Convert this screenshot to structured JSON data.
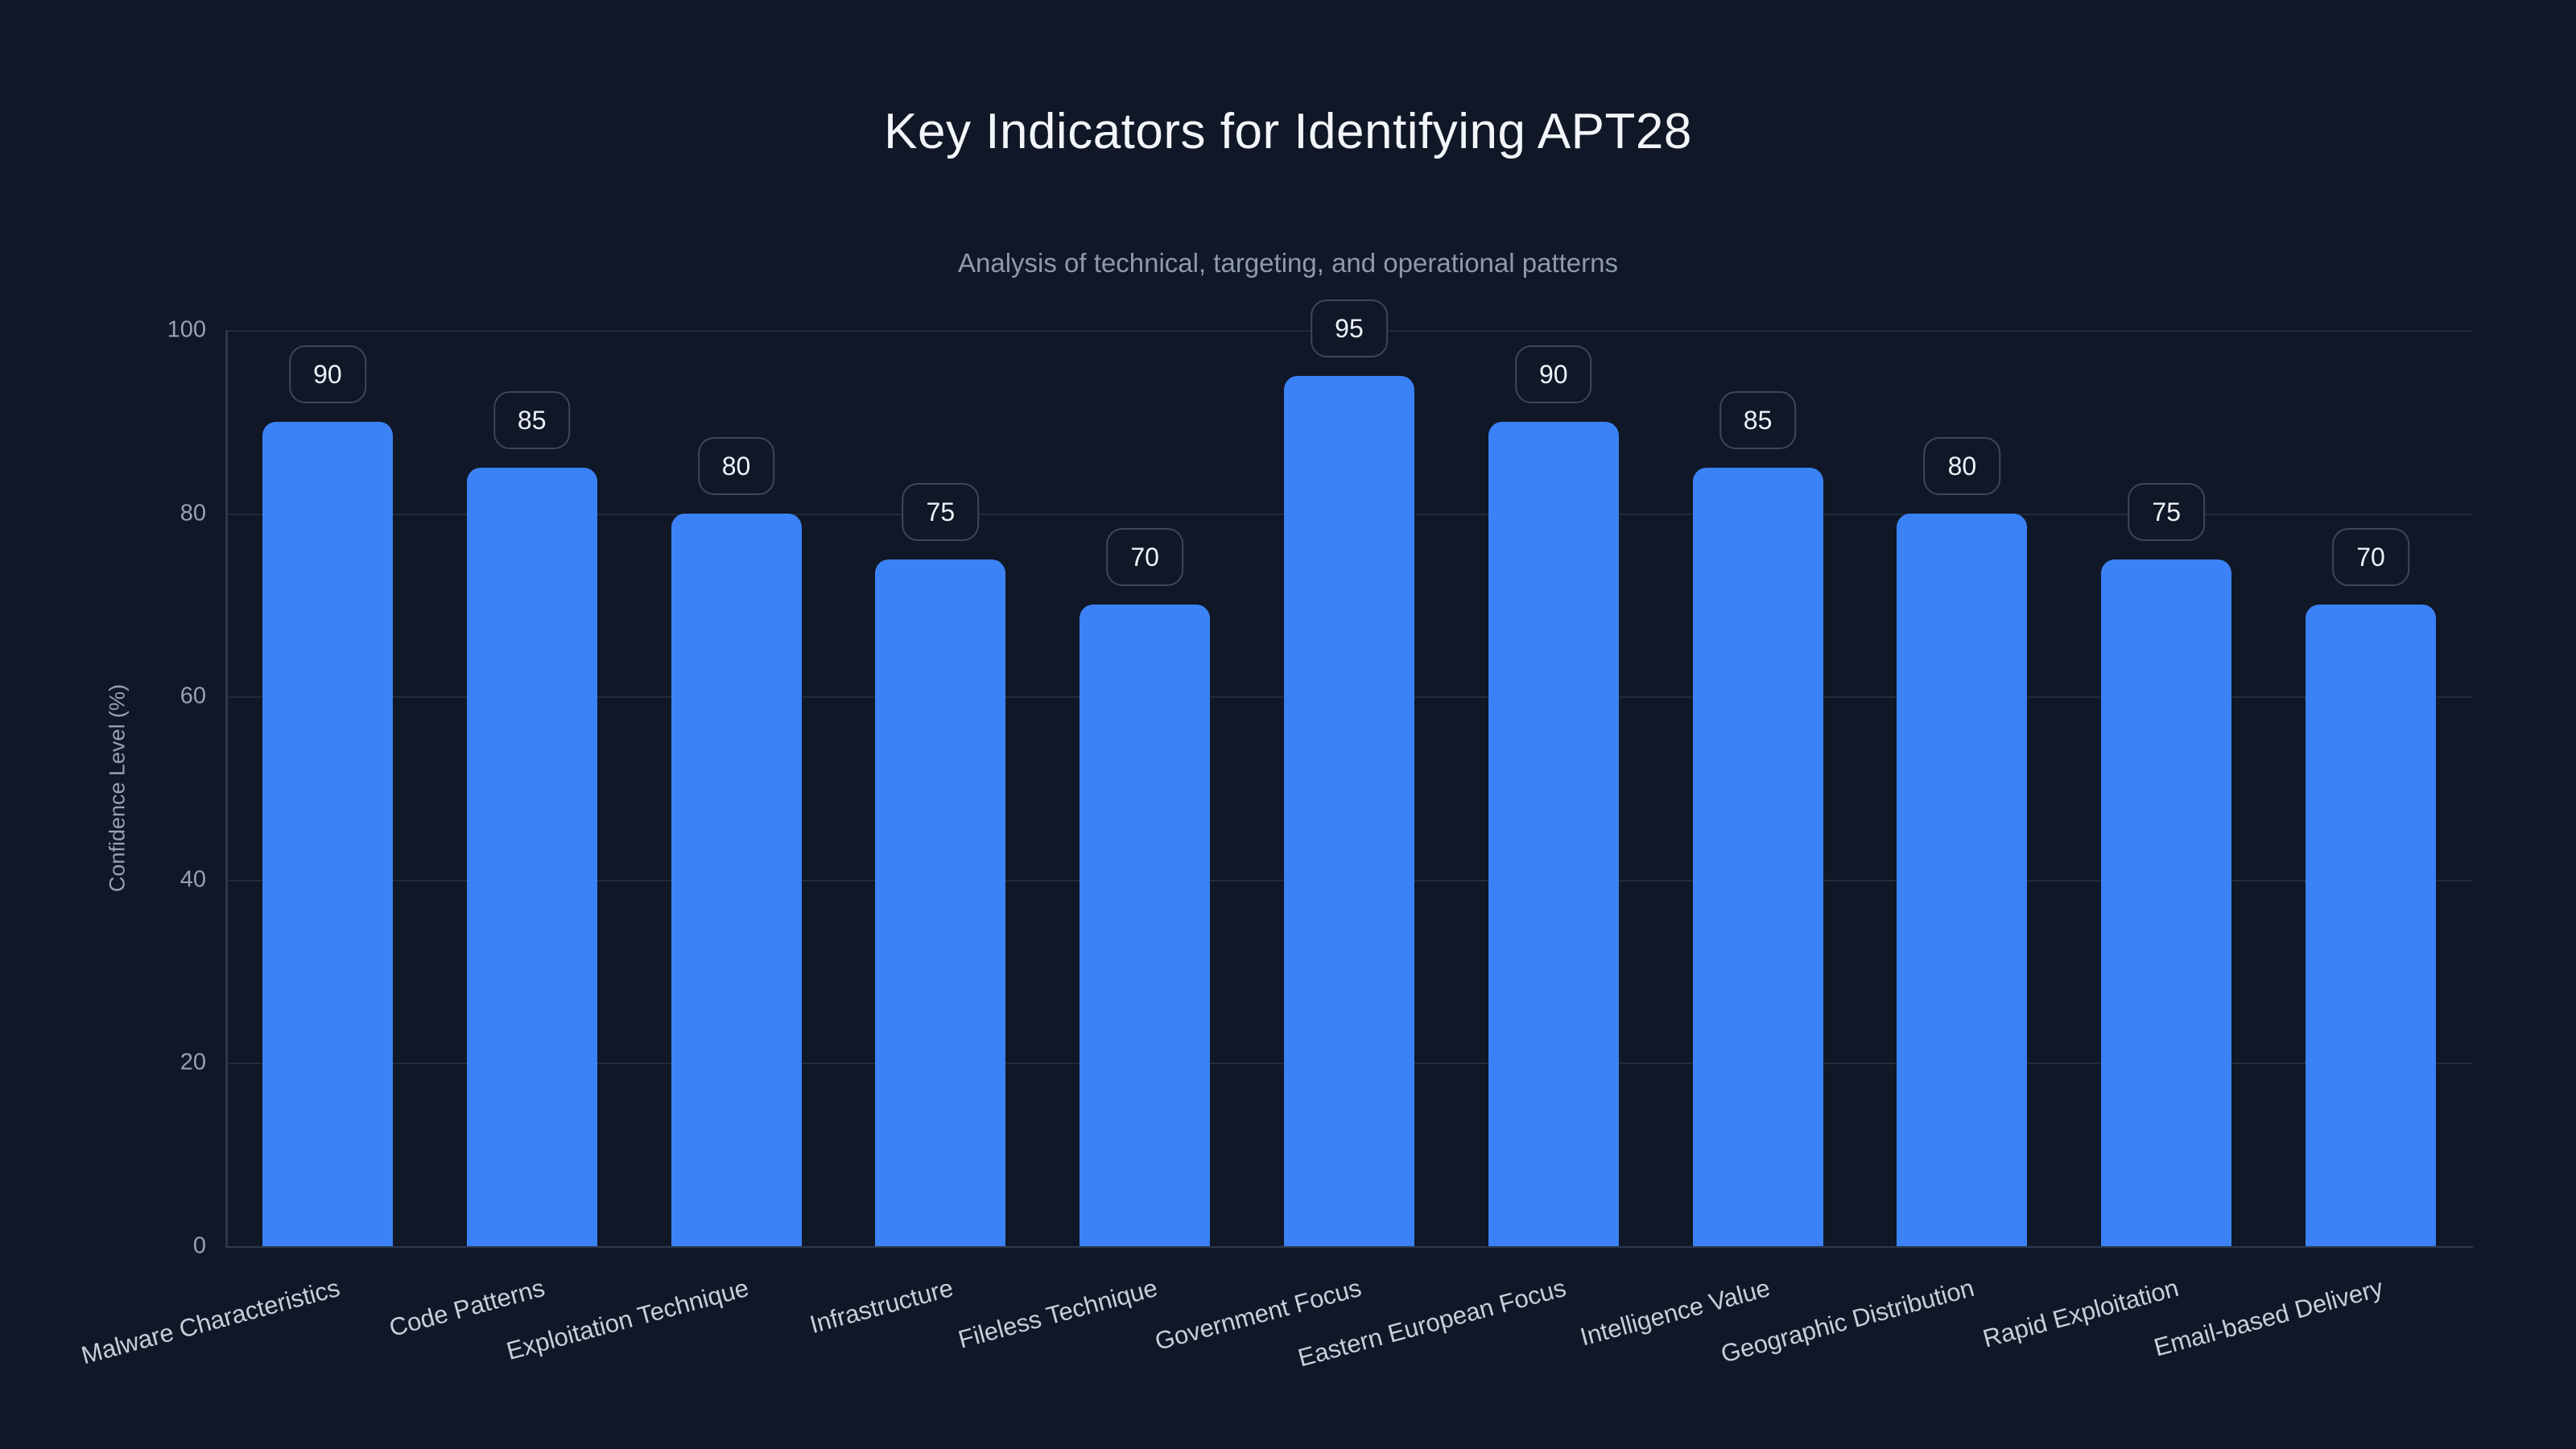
{
  "chart_data": {
    "type": "bar",
    "title": "Key Indicators for Identifying APT28",
    "subtitle": "Analysis of technical, targeting, and operational patterns",
    "xlabel": "",
    "ylabel": "Confidence Level (%)",
    "categories": [
      "Malware Characteristics",
      "Code Patterns",
      "Exploitation Technique",
      "Infrastructure",
      "Fileless Technique",
      "Government Focus",
      "Eastern European Focus",
      "Intelligence Value",
      "Geographic Distribution",
      "Rapid Exploitation",
      "Email-based Delivery"
    ],
    "values": [
      90,
      85,
      80,
      75,
      70,
      95,
      90,
      85,
      80,
      75,
      70
    ],
    "ylim": [
      0,
      100
    ],
    "yticks": [
      0,
      20,
      40,
      60,
      80,
      100
    ],
    "grid": true,
    "legend": false,
    "value_badges_shown": true,
    "x_label_rotation_deg": -15,
    "colors": {
      "background": "#101726",
      "bar": "#3b82f6",
      "grid": "#222b3a",
      "axis": "#2c3749",
      "title": "#f2f5f9",
      "subtitle": "#8d99ac",
      "tick_label": "#96a1b3",
      "x_label": "#c6cfdc",
      "badge_border": "#3c4758",
      "badge_text": "#eef2f8"
    }
  }
}
